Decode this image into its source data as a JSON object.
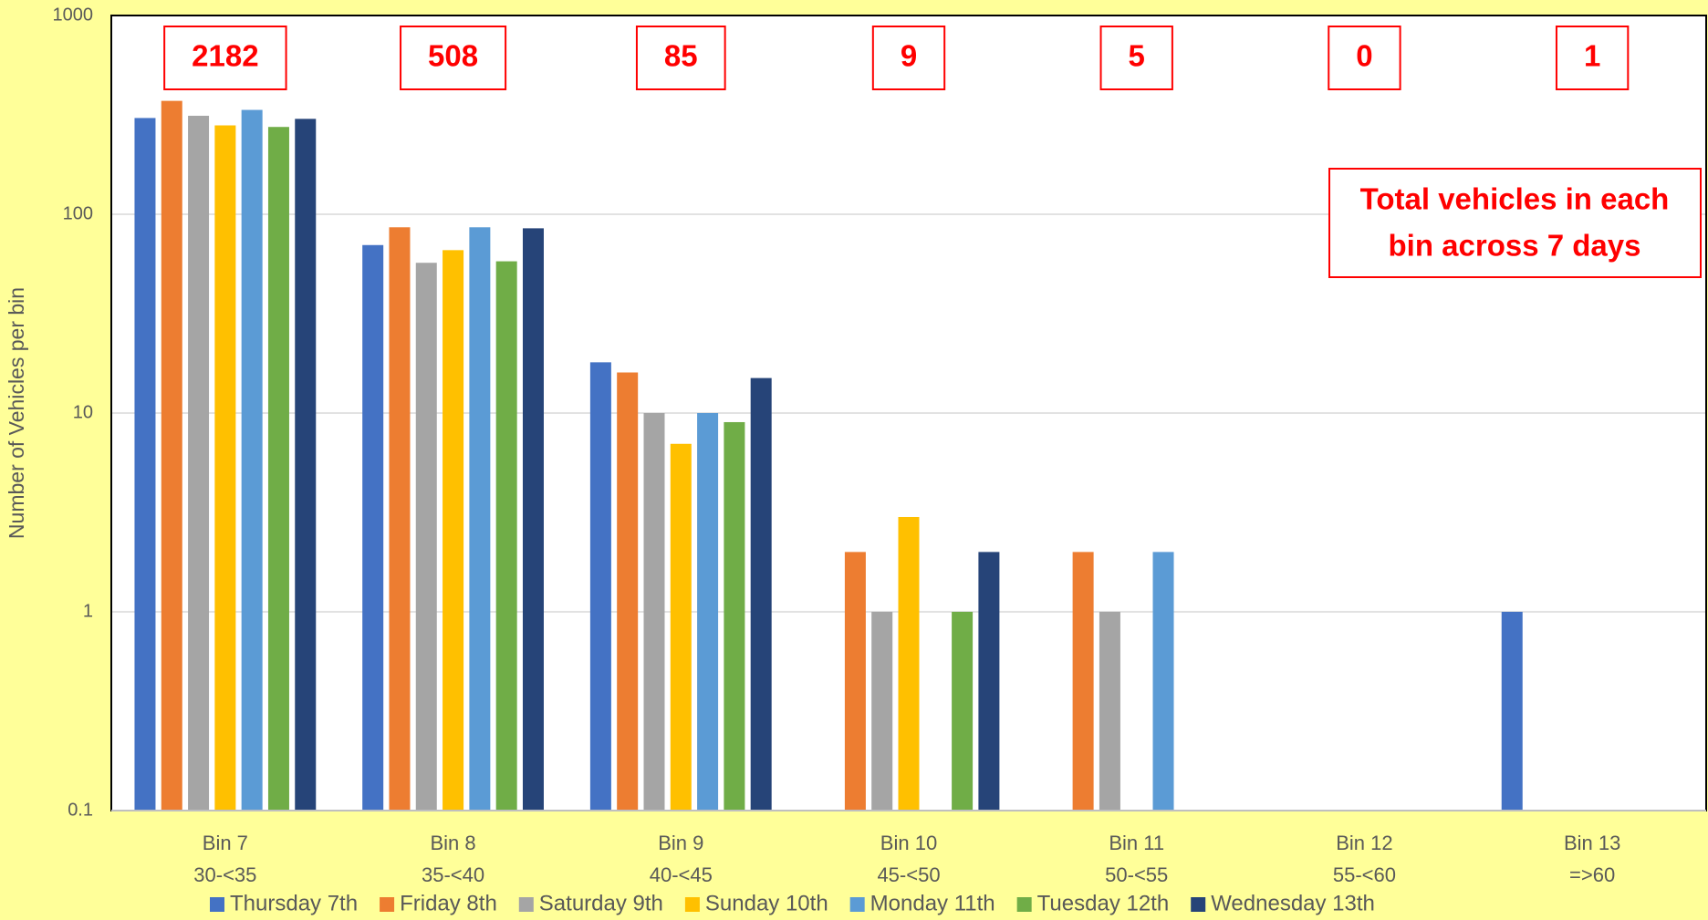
{
  "chart_data": {
    "type": "bar",
    "y_label": "Number of Vehicles per bin",
    "categories": [
      [
        "Bin 7",
        "30-<35"
      ],
      [
        "Bin 8",
        "35-<40"
      ],
      [
        "Bin 9",
        "40-<45"
      ],
      [
        "Bin 10",
        "45-<50"
      ],
      [
        "Bin 11",
        "50-<55"
      ],
      [
        "Bin 12",
        "55-<60"
      ],
      [
        "Bin 13",
        "=>60"
      ]
    ],
    "series": [
      {
        "name": "Thursday 7th",
        "color": "#4472c4",
        "values": [
          305,
          70,
          18,
          0,
          0,
          0,
          1
        ]
      },
      {
        "name": "Friday 8th",
        "color": "#ed7d31",
        "values": [
          372,
          86,
          16,
          2,
          2,
          0,
          0
        ]
      },
      {
        "name": "Saturday 9th",
        "color": "#a5a5a5",
        "values": [
          313,
          57,
          10,
          1,
          1,
          0,
          0
        ]
      },
      {
        "name": "Sunday 10th",
        "color": "#ffc000",
        "values": [
          280,
          66,
          7,
          3,
          0,
          0,
          0
        ]
      },
      {
        "name": "Monday 11th",
        "color": "#5b9bd5",
        "values": [
          335,
          86,
          10,
          0,
          2,
          0,
          0
        ]
      },
      {
        "name": "Tuesday 12th",
        "color": "#70ad47",
        "values": [
          275,
          58,
          9,
          1,
          0,
          0,
          0
        ]
      },
      {
        "name": "Wednesday 13th",
        "color": "#264478",
        "values": [
          302,
          85,
          15,
          2,
          0,
          0,
          0
        ]
      }
    ],
    "totals": [
      2182,
      508,
      85,
      9,
      5,
      0,
      1
    ],
    "annotation": [
      "Total vehicles in each",
      "bin across 7 days"
    ],
    "log_scale": true,
    "ylim": [
      0.1,
      1000
    ],
    "yticks": [
      0.1,
      1,
      10,
      100,
      1000
    ],
    "grid": true,
    "legend": "bottom"
  }
}
